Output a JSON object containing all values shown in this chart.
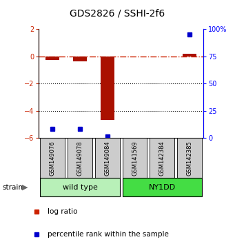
{
  "title": "GDS2826 / SSHI-2f6",
  "samples": [
    "GSM149076",
    "GSM149078",
    "GSM149084",
    "GSM141569",
    "GSM142384",
    "GSM142385"
  ],
  "log_ratios": [
    -0.25,
    -0.35,
    -4.7,
    0.0,
    0.0,
    0.2
  ],
  "percentile_ranks": [
    8.0,
    8.5,
    1.5,
    null,
    null,
    95.0
  ],
  "groups": [
    {
      "label": "wild type",
      "indices": [
        0,
        1,
        2
      ],
      "color": "#b8f0b8"
    },
    {
      "label": "NY1DD",
      "indices": [
        3,
        4,
        5
      ],
      "color": "#44dd44"
    }
  ],
  "ylim_left": [
    -6,
    2
  ],
  "ylim_right": [
    0,
    100
  ],
  "yticks_left": [
    2,
    0,
    -2,
    -4,
    -6
  ],
  "yticks_right": [
    100,
    75,
    50,
    25,
    0
  ],
  "bar_color": "#aa1100",
  "dot_color_log": "#cc2200",
  "dot_color_pct": "#0000cc",
  "hline_color": "#cc2200",
  "grid_color": "#000000",
  "bg_color": "#ffffff",
  "sample_bg": "#cccccc",
  "title_fontsize": 10,
  "tick_fontsize": 7,
  "label_fontsize": 7.5,
  "group_label_fontsize": 8,
  "sample_fontsize": 6
}
